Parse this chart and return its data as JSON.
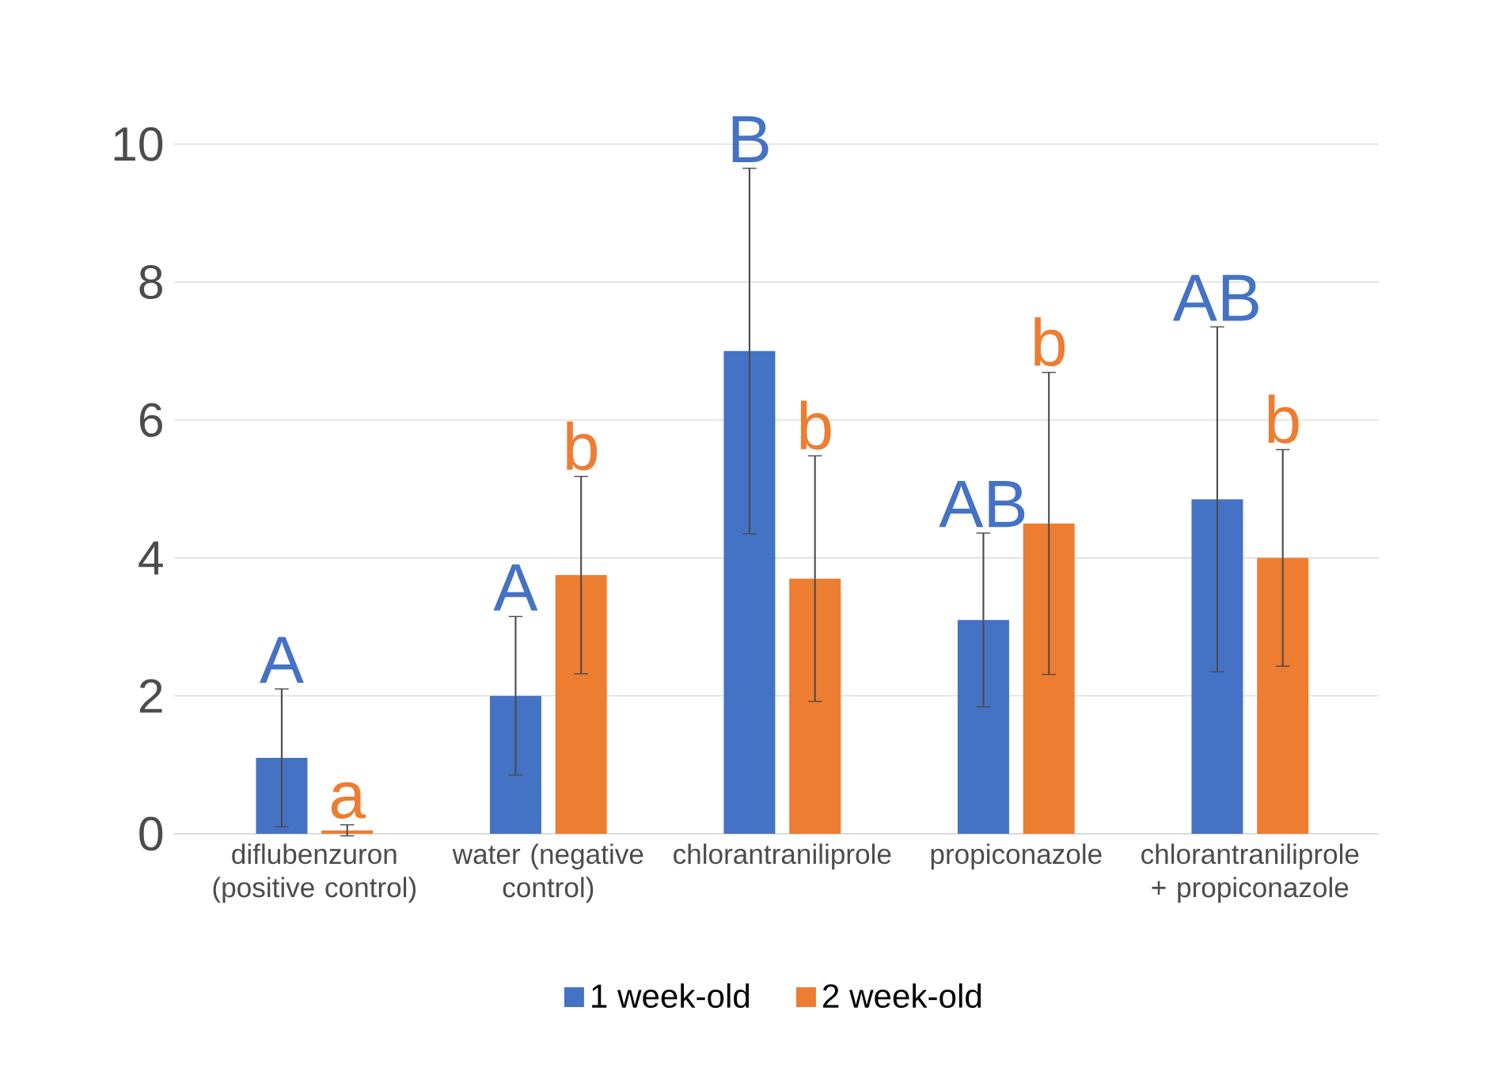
{
  "chart_data": {
    "type": "bar",
    "categories": [
      "diflubenzuron (positive control)",
      "water (negative control)",
      "chlorantraniliprole",
      "propiconazole",
      "chlorantraniliprole + propiconazole"
    ],
    "series": [
      {
        "name": "1 week-old",
        "color": "#4472c4",
        "values": [
          1.1,
          2.0,
          7.0,
          3.1,
          4.85
        ],
        "errors": [
          1.0,
          1.15,
          2.65,
          1.26,
          2.5
        ],
        "value_labels": [
          "A",
          "A",
          "B",
          "AB",
          "AB"
        ]
      },
      {
        "name": "2 week-old",
        "color": "#ed7d31",
        "values": [
          0.05,
          3.75,
          3.7,
          4.5,
          4.0
        ],
        "errors": [
          0.08,
          1.43,
          1.78,
          2.19,
          1.57
        ],
        "value_labels": [
          "a",
          "b",
          "b",
          "b",
          "b"
        ]
      }
    ],
    "ylim": [
      0,
      10
    ],
    "yticks": [
      0,
      2,
      4,
      6,
      8,
      10
    ],
    "grid": "y",
    "legend": "bottom"
  }
}
